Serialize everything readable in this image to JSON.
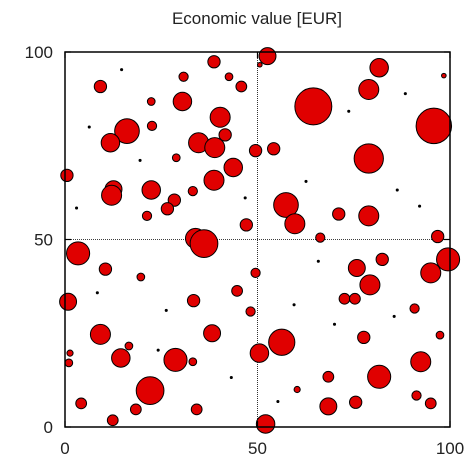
{
  "chart_data": {
    "type": "scatter",
    "title": "Economic value [EUR]",
    "xlim": [
      0,
      100
    ],
    "ylim": [
      0,
      100
    ],
    "xticks": [
      "0",
      "50",
      "100"
    ],
    "yticks": [
      "0",
      "50",
      "100"
    ],
    "reference_lines": {
      "x": 50,
      "y": 50
    },
    "colors": {
      "marker_fill": "#e00000",
      "marker_edge": "#000000",
      "axis": "#000000"
    },
    "points": [
      {
        "x": 52.6,
        "y": 98.9,
        "r": 2.2
      },
      {
        "x": 38.7,
        "y": 97.4,
        "r": 1.6
      },
      {
        "x": 50.6,
        "y": 96.6,
        "r": 0.6
      },
      {
        "x": 81.6,
        "y": 95.8,
        "r": 2.4
      },
      {
        "x": 30.8,
        "y": 93.4,
        "r": 1.2
      },
      {
        "x": 42.6,
        "y": 93.4,
        "r": 1.0
      },
      {
        "x": 9.2,
        "y": 90.8,
        "r": 1.6
      },
      {
        "x": 45.8,
        "y": 90.8,
        "r": 1.4
      },
      {
        "x": 78.9,
        "y": 90.0,
        "r": 2.6
      },
      {
        "x": 30.5,
        "y": 86.8,
        "r": 2.4
      },
      {
        "x": 22.4,
        "y": 86.8,
        "r": 1.0
      },
      {
        "x": 64.5,
        "y": 85.5,
        "r": 4.8
      },
      {
        "x": 40.3,
        "y": 82.6,
        "r": 2.6
      },
      {
        "x": 95.8,
        "y": 80.3,
        "r": 4.6
      },
      {
        "x": 16.1,
        "y": 78.9,
        "r": 3.2
      },
      {
        "x": 41.6,
        "y": 77.9,
        "r": 1.6
      },
      {
        "x": 22.6,
        "y": 80.3,
        "r": 1.2
      },
      {
        "x": 11.8,
        "y": 75.8,
        "r": 2.4
      },
      {
        "x": 34.7,
        "y": 75.8,
        "r": 2.6
      },
      {
        "x": 38.9,
        "y": 74.5,
        "r": 2.6
      },
      {
        "x": 54.2,
        "y": 74.2,
        "r": 1.6
      },
      {
        "x": 49.5,
        "y": 73.7,
        "r": 1.6
      },
      {
        "x": 78.9,
        "y": 71.6,
        "r": 3.8
      },
      {
        "x": 28.9,
        "y": 71.8,
        "r": 1.0
      },
      {
        "x": 0.5,
        "y": 67.1,
        "r": 1.6
      },
      {
        "x": 43.7,
        "y": 69.2,
        "r": 2.4
      },
      {
        "x": 38.7,
        "y": 65.8,
        "r": 2.6
      },
      {
        "x": 12.6,
        "y": 63.4,
        "r": 2.2
      },
      {
        "x": 22.4,
        "y": 63.2,
        "r": 2.4
      },
      {
        "x": 33.2,
        "y": 62.9,
        "r": 1.2
      },
      {
        "x": 12.1,
        "y": 61.8,
        "r": 2.6
      },
      {
        "x": 28.4,
        "y": 60.5,
        "r": 1.6
      },
      {
        "x": 57.4,
        "y": 59.2,
        "r": 3.2
      },
      {
        "x": 26.6,
        "y": 58.2,
        "r": 1.6
      },
      {
        "x": 71.1,
        "y": 56.8,
        "r": 1.6
      },
      {
        "x": 78.9,
        "y": 56.3,
        "r": 2.6
      },
      {
        "x": 21.3,
        "y": 56.3,
        "r": 1.2
      },
      {
        "x": 59.7,
        "y": 54.2,
        "r": 2.6
      },
      {
        "x": 47.1,
        "y": 53.9,
        "r": 1.6
      },
      {
        "x": 66.3,
        "y": 50.5,
        "r": 1.2
      },
      {
        "x": 33.9,
        "y": 50.3,
        "r": 2.6
      },
      {
        "x": 36.1,
        "y": 48.9,
        "r": 3.6
      },
      {
        "x": 96.8,
        "y": 50.8,
        "r": 1.6
      },
      {
        "x": 3.4,
        "y": 46.3,
        "r": 3.0
      },
      {
        "x": 99.5,
        "y": 44.7,
        "r": 3.0
      },
      {
        "x": 82.4,
        "y": 44.7,
        "r": 1.6
      },
      {
        "x": 75.8,
        "y": 42.4,
        "r": 2.2
      },
      {
        "x": 10.5,
        "y": 42.1,
        "r": 1.6
      },
      {
        "x": 95.0,
        "y": 41.1,
        "r": 2.6
      },
      {
        "x": 49.5,
        "y": 41.1,
        "r": 1.2
      },
      {
        "x": 19.7,
        "y": 40.0,
        "r": 1.0
      },
      {
        "x": 79.2,
        "y": 37.9,
        "r": 2.6
      },
      {
        "x": 44.7,
        "y": 36.3,
        "r": 1.4
      },
      {
        "x": 0.8,
        "y": 33.4,
        "r": 2.2
      },
      {
        "x": 33.4,
        "y": 33.7,
        "r": 1.6
      },
      {
        "x": 72.6,
        "y": 34.2,
        "r": 1.4
      },
      {
        "x": 75.3,
        "y": 34.2,
        "r": 1.4
      },
      {
        "x": 90.8,
        "y": 31.6,
        "r": 1.2
      },
      {
        "x": 48.2,
        "y": 30.8,
        "r": 1.2
      },
      {
        "x": 9.2,
        "y": 24.7,
        "r": 2.6
      },
      {
        "x": 38.2,
        "y": 25.0,
        "r": 2.2
      },
      {
        "x": 77.6,
        "y": 23.9,
        "r": 1.6
      },
      {
        "x": 97.4,
        "y": 24.5,
        "r": 1.0
      },
      {
        "x": 56.3,
        "y": 22.6,
        "r": 3.4
      },
      {
        "x": 16.6,
        "y": 21.6,
        "r": 1.0
      },
      {
        "x": 50.5,
        "y": 19.7,
        "r": 2.4
      },
      {
        "x": 14.5,
        "y": 18.4,
        "r": 2.4
      },
      {
        "x": 28.7,
        "y": 17.9,
        "r": 3.0
      },
      {
        "x": 1.0,
        "y": 17.1,
        "r": 1.0
      },
      {
        "x": 1.3,
        "y": 19.7,
        "r": 0.8
      },
      {
        "x": 33.2,
        "y": 17.4,
        "r": 1.0
      },
      {
        "x": 92.4,
        "y": 17.4,
        "r": 2.6
      },
      {
        "x": 81.6,
        "y": 13.4,
        "r": 3.0
      },
      {
        "x": 68.4,
        "y": 13.4,
        "r": 1.4
      },
      {
        "x": 60.3,
        "y": 10.0,
        "r": 0.8
      },
      {
        "x": 22.1,
        "y": 9.7,
        "r": 3.6
      },
      {
        "x": 91.3,
        "y": 8.4,
        "r": 1.2
      },
      {
        "x": 4.2,
        "y": 6.3,
        "r": 1.4
      },
      {
        "x": 75.5,
        "y": 6.6,
        "r": 1.6
      },
      {
        "x": 68.4,
        "y": 5.5,
        "r": 2.2
      },
      {
        "x": 95.0,
        "y": 6.3,
        "r": 1.4
      },
      {
        "x": 34.2,
        "y": 4.7,
        "r": 1.4
      },
      {
        "x": 18.4,
        "y": 4.7,
        "r": 1.4
      },
      {
        "x": 12.4,
        "y": 1.8,
        "r": 1.4
      },
      {
        "x": 52.1,
        "y": 0.8,
        "r": 2.4
      },
      {
        "x": 24.2,
        "y": 20.5,
        "r": 0.4
      },
      {
        "x": 62.6,
        "y": 65.5,
        "r": 0.4
      },
      {
        "x": 88.4,
        "y": 88.9,
        "r": 0.4
      },
      {
        "x": 6.3,
        "y": 80.0,
        "r": 0.4
      },
      {
        "x": 86.3,
        "y": 63.2,
        "r": 0.4
      },
      {
        "x": 70.0,
        "y": 27.4,
        "r": 0.4
      },
      {
        "x": 59.5,
        "y": 32.6,
        "r": 0.4
      },
      {
        "x": 43.2,
        "y": 13.2,
        "r": 0.4
      },
      {
        "x": 3.0,
        "y": 58.4,
        "r": 0.4
      },
      {
        "x": 92.1,
        "y": 58.9,
        "r": 0.4
      },
      {
        "x": 65.8,
        "y": 44.2,
        "r": 0.4
      },
      {
        "x": 85.5,
        "y": 29.5,
        "r": 0.4
      },
      {
        "x": 26.3,
        "y": 31.1,
        "r": 0.4
      },
      {
        "x": 55.3,
        "y": 6.8,
        "r": 0.4
      },
      {
        "x": 14.7,
        "y": 95.3,
        "r": 0.4
      },
      {
        "x": 98.4,
        "y": 93.7,
        "r": 0.6
      },
      {
        "x": 73.7,
        "y": 84.2,
        "r": 0.4
      },
      {
        "x": 8.4,
        "y": 35.8,
        "r": 0.4
      },
      {
        "x": 46.8,
        "y": 61.1,
        "r": 0.4
      },
      {
        "x": 19.5,
        "y": 71.1,
        "r": 0.4
      }
    ]
  }
}
